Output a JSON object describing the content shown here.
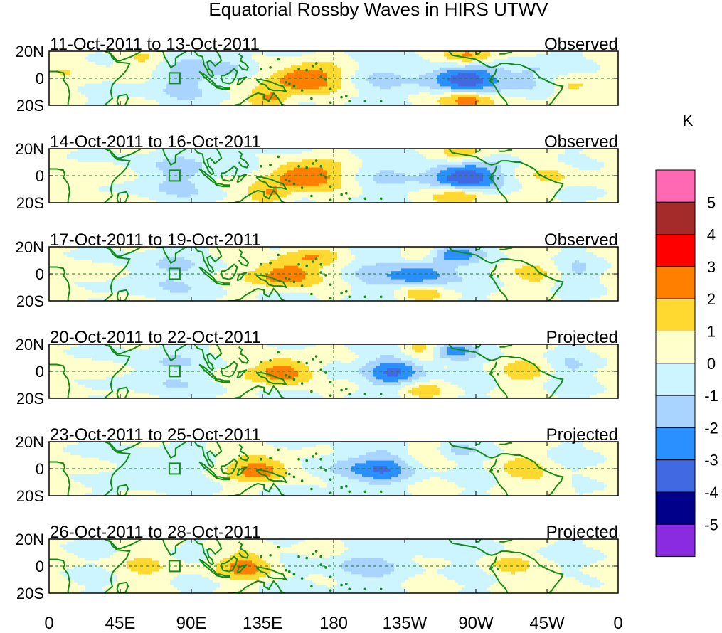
{
  "chart_data": {
    "type": "heatmap",
    "title": "Equatorial Rossby Waves in HIRS UTWV",
    "variable": "HIRS UTWV",
    "unit": "K",
    "x_range_deg_east": [
      0,
      360
    ],
    "y_range_deg": [
      -20,
      20
    ],
    "x_tick_labels": [
      "0",
      "45E",
      "90E",
      "135E",
      "180",
      "135W",
      "90W",
      "45W",
      "0"
    ],
    "y_tick_labels": [
      "20N",
      "0",
      "20S"
    ],
    "colorbar": {
      "label": "K",
      "ticks": [
        "5",
        "4",
        "3",
        "2",
        "1",
        "0",
        "-1",
        "-2",
        "-3",
        "-4",
        "-5"
      ],
      "colors_top_to_bottom": [
        "#ff69b4",
        "#a52a2a",
        "#ff0000",
        "#ff7f00",
        "#ffd830",
        "#ffffcc",
        "#ccf5ff",
        "#a8d4ff",
        "#2a90ff",
        "#4169e1",
        "#00008b",
        "#8a2be2"
      ]
    },
    "panels": [
      {
        "period": "11-Oct-2011 to 13-Oct-2011",
        "status": "Observed",
        "anomalies": [
          {
            "lon": 160,
            "lat": 0,
            "amp": 3.3,
            "sx": 16,
            "sy": 7
          },
          {
            "lon": 262,
            "lat": 0,
            "amp": -3.5,
            "sx": 18,
            "sy": 8
          },
          {
            "lon": 265,
            "lat": 16,
            "amp": 3.0,
            "sx": 12,
            "sy": 5
          },
          {
            "lon": 265,
            "lat": -16,
            "amp": 3.0,
            "sx": 12,
            "sy": 5
          },
          {
            "lon": 140,
            "lat": -15,
            "amp": 2.4,
            "sx": 10,
            "sy": 5
          },
          {
            "lon": 115,
            "lat": 8,
            "amp": -1.3,
            "sx": 12,
            "sy": 9
          },
          {
            "lon": 80,
            "lat": 0,
            "amp": -1.2,
            "sx": 16,
            "sy": 14
          },
          {
            "lon": 60,
            "lat": 12,
            "amp": 1.2,
            "sx": 10,
            "sy": 6
          },
          {
            "lon": 330,
            "lat": -8,
            "amp": 1.6,
            "sx": 10,
            "sy": 7
          },
          {
            "lon": 305,
            "lat": 0,
            "amp": -1.4,
            "sx": 12,
            "sy": 10
          },
          {
            "lon": 20,
            "lat": 5,
            "amp": 0.8,
            "sx": 14,
            "sy": 10
          },
          {
            "lon": 210,
            "lat": 0,
            "amp": -0.8,
            "sx": 14,
            "sy": 12
          }
        ]
      },
      {
        "period": "14-Oct-2011 to 16-Oct-2011",
        "status": "Observed",
        "anomalies": [
          {
            "lon": 160,
            "lat": 0,
            "amp": 3.3,
            "sx": 16,
            "sy": 7
          },
          {
            "lon": 262,
            "lat": 0,
            "amp": -3.6,
            "sx": 18,
            "sy": 9
          },
          {
            "lon": 262,
            "lat": 15,
            "amp": 2.8,
            "sx": 12,
            "sy": 5
          },
          {
            "lon": 260,
            "lat": -15,
            "amp": 2.6,
            "sx": 12,
            "sy": 5
          },
          {
            "lon": 140,
            "lat": -14,
            "amp": 2.2,
            "sx": 10,
            "sy": 5
          },
          {
            "lon": 75,
            "lat": 0,
            "amp": -1.3,
            "sx": 16,
            "sy": 14
          },
          {
            "lon": 120,
            "lat": 10,
            "amp": -1.0,
            "sx": 10,
            "sy": 8
          },
          {
            "lon": 320,
            "lat": 0,
            "amp": 1.2,
            "sx": 12,
            "sy": 8
          },
          {
            "lon": 30,
            "lat": 0,
            "amp": 0.9,
            "sx": 12,
            "sy": 10
          },
          {
            "lon": 215,
            "lat": 0,
            "amp": -0.7,
            "sx": 12,
            "sy": 12
          }
        ]
      },
      {
        "period": "17-Oct-2011 to 19-Oct-2011",
        "status": "Observed",
        "anomalies": [
          {
            "lon": 150,
            "lat": 0,
            "amp": 3.2,
            "sx": 14,
            "sy": 7
          },
          {
            "lon": 235,
            "lat": 0,
            "amp": -3.0,
            "sx": 15,
            "sy": 8
          },
          {
            "lon": 255,
            "lat": 14,
            "amp": -2.5,
            "sx": 12,
            "sy": 5
          },
          {
            "lon": 235,
            "lat": 14,
            "amp": 1.8,
            "sx": 10,
            "sy": 5
          },
          {
            "lon": 235,
            "lat": -14,
            "amp": 1.8,
            "sx": 10,
            "sy": 5
          },
          {
            "lon": 165,
            "lat": 14,
            "amp": 1.6,
            "sx": 12,
            "sy": 5
          },
          {
            "lon": 70,
            "lat": 0,
            "amp": -1.2,
            "sx": 16,
            "sy": 14
          },
          {
            "lon": 310,
            "lat": 0,
            "amp": 1.0,
            "sx": 12,
            "sy": 10
          },
          {
            "lon": 200,
            "lat": 0,
            "amp": -0.9,
            "sx": 10,
            "sy": 10
          },
          {
            "lon": 30,
            "lat": 0,
            "amp": 0.7,
            "sx": 12,
            "sy": 10
          },
          {
            "lon": 335,
            "lat": 0,
            "amp": -1.0,
            "sx": 10,
            "sy": 8
          }
        ]
      },
      {
        "period": "20-Oct-2011 to 22-Oct-2011",
        "status": "Projected",
        "anomalies": [
          {
            "lon": 148,
            "lat": 0,
            "amp": 3.1,
            "sx": 13,
            "sy": 7
          },
          {
            "lon": 220,
            "lat": 0,
            "amp": -2.9,
            "sx": 14,
            "sy": 8
          },
          {
            "lon": 255,
            "lat": 15,
            "amp": -2.4,
            "sx": 10,
            "sy": 5
          },
          {
            "lon": 235,
            "lat": 16,
            "amp": 1.6,
            "sx": 10,
            "sy": 5
          },
          {
            "lon": 235,
            "lat": -14,
            "amp": 1.5,
            "sx": 10,
            "sy": 5
          },
          {
            "lon": 70,
            "lat": 0,
            "amp": -1.1,
            "sx": 16,
            "sy": 14
          },
          {
            "lon": 300,
            "lat": 0,
            "amp": 1.2,
            "sx": 12,
            "sy": 8
          },
          {
            "lon": 180,
            "lat": 0,
            "amp": -1.0,
            "sx": 6,
            "sy": 6
          },
          {
            "lon": 30,
            "lat": 0,
            "amp": 0.7,
            "sx": 12,
            "sy": 10
          },
          {
            "lon": 330,
            "lat": 0,
            "amp": -0.9,
            "sx": 10,
            "sy": 8
          }
        ]
      },
      {
        "period": "23-Oct-2011 to 25-Oct-2011",
        "status": "Projected",
        "anomalies": [
          {
            "lon": 135,
            "lat": 0,
            "amp": 2.6,
            "sx": 14,
            "sy": 7
          },
          {
            "lon": 212,
            "lat": 0,
            "amp": -2.5,
            "sx": 14,
            "sy": 8
          },
          {
            "lon": 185,
            "lat": 0,
            "amp": -1.2,
            "sx": 12,
            "sy": 10
          },
          {
            "lon": 300,
            "lat": 0,
            "amp": 1.2,
            "sx": 12,
            "sy": 8
          },
          {
            "lon": 60,
            "lat": 0,
            "amp": -0.9,
            "sx": 16,
            "sy": 14
          },
          {
            "lon": 255,
            "lat": 14,
            "amp": -1.2,
            "sx": 10,
            "sy": 5
          },
          {
            "lon": 240,
            "lat": 14,
            "amp": 1.0,
            "sx": 10,
            "sy": 5
          },
          {
            "lon": 30,
            "lat": 0,
            "amp": 0.6,
            "sx": 12,
            "sy": 10
          },
          {
            "lon": 320,
            "lat": -12,
            "amp": 1.1,
            "sx": 10,
            "sy": 5
          }
        ]
      },
      {
        "period": "26-Oct-2011 to 28-Oct-2011",
        "status": "Projected",
        "anomalies": [
          {
            "lon": 125,
            "lat": 0,
            "amp": 2.2,
            "sx": 14,
            "sy": 7
          },
          {
            "lon": 195,
            "lat": 0,
            "amp": -1.3,
            "sx": 18,
            "sy": 10
          },
          {
            "lon": 290,
            "lat": 0,
            "amp": 1.3,
            "sx": 10,
            "sy": 6
          },
          {
            "lon": 325,
            "lat": -14,
            "amp": 1.1,
            "sx": 10,
            "sy": 5
          },
          {
            "lon": 60,
            "lat": 0,
            "amp": 0.8,
            "sx": 16,
            "sy": 12
          },
          {
            "lon": 245,
            "lat": 12,
            "amp": -0.9,
            "sx": 12,
            "sy": 6
          },
          {
            "lon": 170,
            "lat": 14,
            "amp": 0.7,
            "sx": 10,
            "sy": 5
          }
        ]
      }
    ]
  }
}
